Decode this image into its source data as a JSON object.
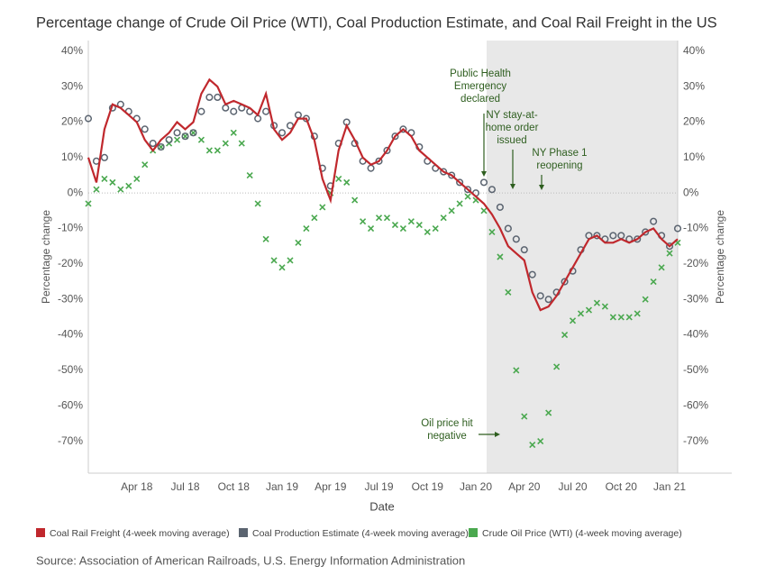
{
  "chart_data": {
    "type": "line",
    "title": "Percentage change of Crude Oil Price (WTI), Coal Production Estimate, and Coal Rail Freight in the US",
    "x_label": "Date",
    "y_label": "Percentage change",
    "y2_label": "Percentage change",
    "source": "Source: Association of American Railroads, U.S. Energy Information Administration",
    "categories": [
      null,
      null,
      null,
      null,
      null,
      null,
      "Apr 18",
      null,
      null,
      null,
      null,
      null,
      "Jul 18",
      null,
      null,
      null,
      null,
      null,
      "Oct 18",
      null,
      null,
      null,
      null,
      null,
      "Jan 19",
      null,
      null,
      null,
      null,
      null,
      "Apr 19",
      null,
      null,
      null,
      null,
      null,
      "Jul 19",
      null,
      null,
      null,
      null,
      null,
      "Oct 19",
      null,
      null,
      null,
      null,
      null,
      "Jan 20",
      null,
      null,
      null,
      null,
      null,
      "Apr 20",
      null,
      null,
      null,
      null,
      null,
      "Jul 20",
      null,
      null,
      null,
      null,
      null,
      "Oct 20",
      null,
      null,
      null,
      null,
      null,
      "Jan 21",
      null
    ],
    "ylim": [
      -79,
      43
    ],
    "yticks": [
      {
        "value": 40,
        "label": "40%"
      },
      {
        "value": 30,
        "label": "30%"
      },
      {
        "value": 20,
        "label": "20%"
      },
      {
        "value": 10,
        "label": "10%"
      },
      {
        "value": 0,
        "label": "0%"
      },
      {
        "value": -10,
        "label": "-10%"
      },
      {
        "value": -20,
        "label": "-20%"
      },
      {
        "value": -30,
        "label": "-30%"
      },
      {
        "value": -40,
        "label": "-40%"
      },
      {
        "value": -50,
        "label": "-50%"
      },
      {
        "value": -60,
        "label": "-60%"
      },
      {
        "value": -70,
        "label": "-70%"
      }
    ],
    "y2lim": [
      -79,
      43
    ],
    "y2ticks": [
      {
        "value": 40,
        "label": "40%"
      },
      {
        "value": 30,
        "label": "30%"
      },
      {
        "value": 20,
        "label": "20%"
      },
      {
        "value": 10,
        "label": "10%"
      },
      {
        "value": 0,
        "label": "0%"
      },
      {
        "value": -10,
        "label": "-10%"
      },
      {
        "value": -20,
        "label": "-20%"
      },
      {
        "value": -30,
        "label": "-30%"
      },
      {
        "value": -40,
        "label": "-40%"
      },
      {
        "value": -50,
        "label": "-50%"
      },
      {
        "value": -60,
        "label": "-60%"
      },
      {
        "value": -70,
        "label": "-70%"
      }
    ],
    "series": [
      {
        "name": "Coal Rail Freight (4-week moving average)",
        "color": "#c0282d",
        "marker": "line",
        "values": [
          10,
          3,
          18,
          25,
          24,
          22,
          20,
          15,
          12,
          15,
          17,
          20,
          18,
          20,
          28,
          32,
          30,
          25,
          26,
          25,
          24,
          22,
          28,
          18,
          15,
          17,
          21,
          21,
          15,
          4,
          -2,
          12,
          19,
          15,
          10,
          8,
          9,
          12,
          16,
          18,
          16,
          12,
          10,
          8,
          6,
          5,
          3,
          1,
          -1,
          -3,
          -6,
          -10,
          -15,
          -17,
          -19,
          -28,
          -33,
          -32,
          -29,
          -25,
          -21,
          -17,
          -13,
          -12,
          -14,
          -14,
          -13,
          -14,
          -13,
          -11,
          -10,
          -13,
          -15,
          -13
        ]
      },
      {
        "name": "Coal Production Estimate (4-week moving average)",
        "color": "#5b6470",
        "marker": "circle",
        "values": [
          21,
          9,
          10,
          24,
          25,
          23,
          21,
          18,
          14,
          13,
          15,
          17,
          16,
          17,
          23,
          27,
          27,
          24,
          23,
          24,
          23,
          21,
          23,
          19,
          17,
          19,
          22,
          21,
          16,
          7,
          2,
          14,
          20,
          14,
          9,
          7,
          9,
          12,
          16,
          18,
          17,
          13,
          9,
          7,
          6,
          5,
          3,
          1,
          0,
          3,
          1,
          -4,
          -10,
          -13,
          -16,
          -23,
          -29,
          -30,
          -28,
          -25,
          -22,
          -16,
          -12,
          -12,
          -13,
          -12,
          -12,
          -13,
          -13,
          -11,
          -8,
          -12,
          -15,
          -10
        ]
      },
      {
        "name": "Crude Oil Price (WTI) (4-week moving average)",
        "color": "#4aa84f",
        "marker": "cross",
        "values": [
          -3,
          1,
          4,
          3,
          1,
          2,
          4,
          8,
          12,
          13,
          14,
          15,
          16,
          17,
          15,
          12,
          12,
          14,
          17,
          14,
          5,
          -3,
          -13,
          -19,
          -21,
          -19,
          -14,
          -10,
          -7,
          -4,
          0,
          4,
          3,
          -2,
          -8,
          -10,
          -7,
          -7,
          -9,
          -10,
          -8,
          -9,
          -11,
          -10,
          -7,
          -5,
          -3,
          -1,
          -2,
          -5,
          -11,
          -18,
          -28,
          -50,
          -63,
          -71,
          -70,
          -62,
          -49,
          -40,
          -36,
          -34,
          -33,
          -31,
          -32,
          -35,
          -35,
          -35,
          -34,
          -30,
          -25,
          -21,
          -17,
          -14
        ]
      }
    ],
    "annotations": [
      {
        "lines": [
          "Public Health",
          "Emergency",
          "declared"
        ]
      },
      {
        "lines": [
          "NY stay-at-",
          "home order",
          "issued"
        ]
      },
      {
        "lines": [
          "NY Phase 1",
          "reopening"
        ]
      },
      {
        "lines": [
          "Oil price hit",
          "negative"
        ]
      }
    ]
  }
}
